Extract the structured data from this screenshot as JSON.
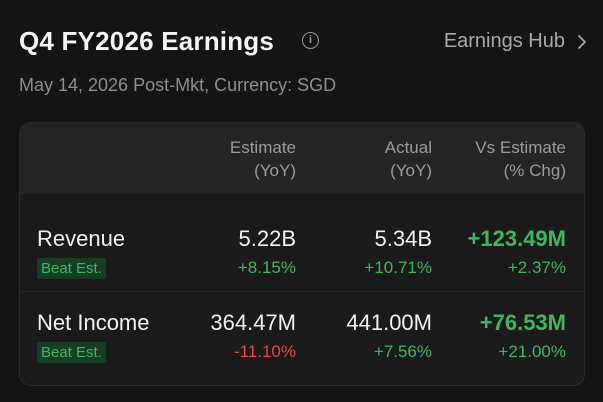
{
  "header": {
    "title": "Q4 FY2026 Earnings",
    "info_icon": "info-icon",
    "hub_link": "Earnings Hub",
    "hub_icon": "chevron-right-icon",
    "subtitle": "May 14, 2026 Post-Mkt, Currency: SGD"
  },
  "table": {
    "columns": [
      {
        "line1": "Estimate",
        "line2": "(YoY)"
      },
      {
        "line1": "Actual",
        "line2": "(YoY)"
      },
      {
        "line1": "Vs Estimate",
        "line2": "(% Chg)"
      }
    ],
    "rows": [
      {
        "metric": "Revenue",
        "badge": "Beat Est.",
        "estimate": "5.22B",
        "estimate_yoy": "+8.15%",
        "actual": "5.34B",
        "actual_yoy": "+10.71%",
        "vs": "+123.49M",
        "vs_pct": "+2.37%"
      },
      {
        "metric": "Net Income",
        "badge": "Beat Est.",
        "estimate": "364.47M",
        "estimate_yoy": "-11.10%",
        "actual": "441.00M",
        "actual_yoy": "+7.56%",
        "vs": "+76.53M",
        "vs_pct": "+21.00%"
      }
    ]
  },
  "colors": {
    "positive": "#3fb761",
    "negative": "#e5484d",
    "background": "#141414",
    "badge_bg": "#173d24"
  }
}
